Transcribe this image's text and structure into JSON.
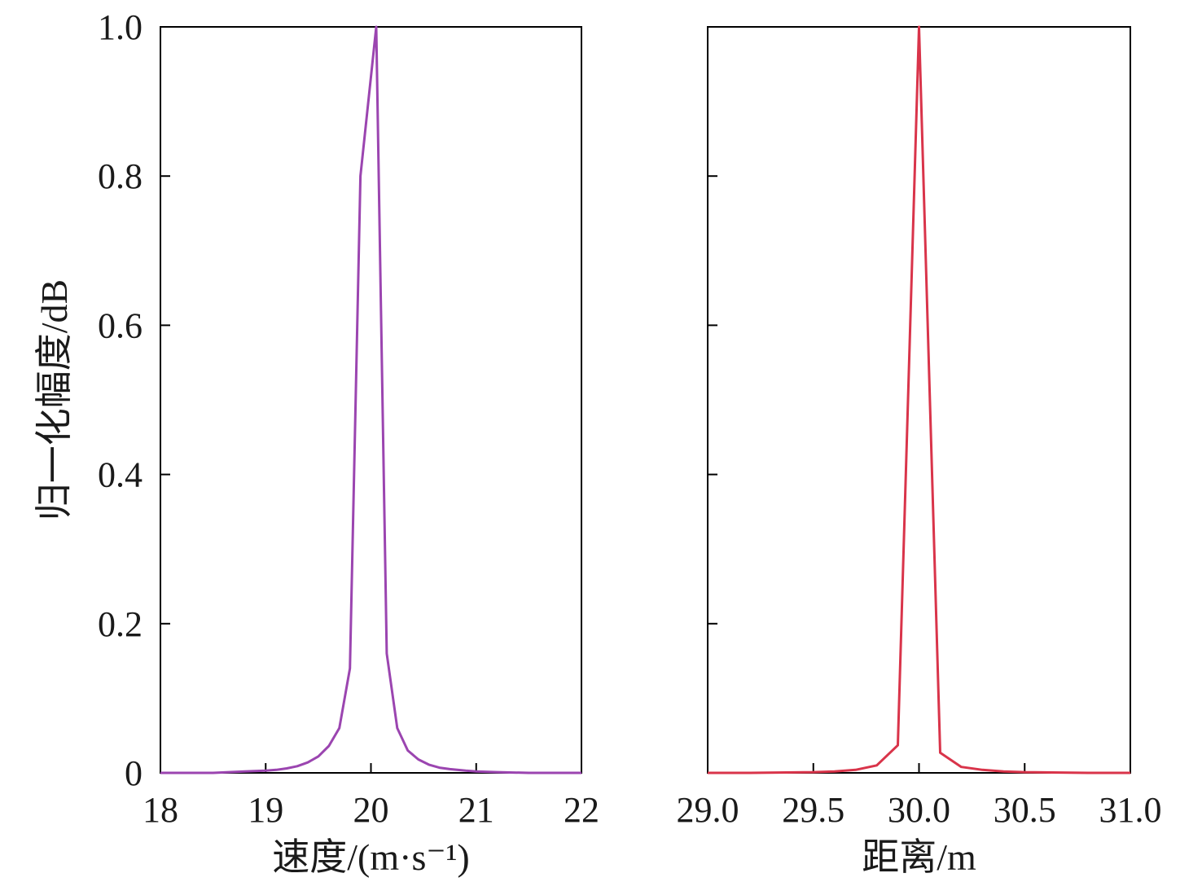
{
  "chart_data": [
    {
      "type": "line",
      "xlabel": "速度/(m·s⁻¹)",
      "ylabel": "归一化幅度/dB",
      "xlim": [
        18,
        22
      ],
      "ylim": [
        0,
        1
      ],
      "x_ticks": [
        18,
        19,
        20,
        21,
        22
      ],
      "x_tick_labels": [
        "18",
        "19",
        "20",
        "21",
        "22"
      ],
      "y_ticks": [
        0,
        0.2,
        0.4,
        0.6,
        0.8,
        1.0
      ],
      "y_tick_labels": [
        "0",
        "0.2",
        "0.4",
        "0.6",
        "0.8",
        "1.0"
      ],
      "grid": false,
      "series": [
        {
          "color": "#9b45b0",
          "x": [
            18.0,
            18.5,
            18.8,
            19.0,
            19.1,
            19.2,
            19.3,
            19.4,
            19.5,
            19.6,
            19.7,
            19.8,
            19.9,
            20.05,
            20.15,
            20.25,
            20.35,
            20.45,
            20.55,
            20.65,
            20.75,
            20.9,
            21.0,
            21.2,
            21.5,
            22.0
          ],
          "values": [
            0.0,
            0.0,
            0.002,
            0.003,
            0.004,
            0.006,
            0.009,
            0.014,
            0.022,
            0.036,
            0.06,
            0.14,
            0.8,
            1.0,
            0.16,
            0.06,
            0.03,
            0.018,
            0.011,
            0.007,
            0.005,
            0.003,
            0.002,
            0.001,
            0.0,
            0.0
          ]
        }
      ]
    },
    {
      "type": "line",
      "xlabel": "距离/m",
      "ylabel": "",
      "xlim": [
        29.0,
        31.0
      ],
      "ylim": [
        0,
        1
      ],
      "x_ticks": [
        29.0,
        29.5,
        30.0,
        30.5,
        31.0
      ],
      "x_tick_labels": [
        "29.0",
        "29.5",
        "30.0",
        "30.5",
        "31.0"
      ],
      "y_ticks": [
        0,
        0.2,
        0.4,
        0.6,
        0.8,
        1.0
      ],
      "y_tick_labels": [],
      "grid": false,
      "series": [
        {
          "color": "#d9344a",
          "x": [
            29.0,
            29.2,
            29.5,
            29.6,
            29.7,
            29.8,
            29.9,
            30.0,
            30.1,
            30.2,
            30.3,
            30.4,
            30.5,
            30.8,
            31.0
          ],
          "values": [
            0.0,
            0.0,
            0.001,
            0.002,
            0.004,
            0.01,
            0.037,
            1.0,
            0.027,
            0.008,
            0.004,
            0.002,
            0.001,
            0.0,
            0.0
          ]
        }
      ]
    }
  ]
}
